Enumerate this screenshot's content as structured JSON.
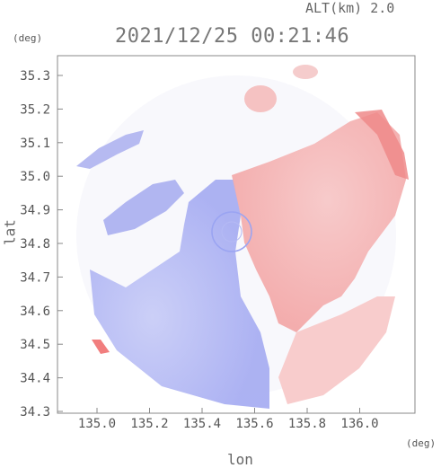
{
  "header": {
    "altitude_label": "ALT(km) 2.0",
    "timestamp": "2021/12/25 00:21:46"
  },
  "axes": {
    "y_unit": "(deg)",
    "x_unit": "(deg)",
    "y_label": "lat",
    "x_label": "lon",
    "y_ticks": [
      "35.3",
      "35.2",
      "35.1",
      "35.0",
      "34.9",
      "34.8",
      "34.7",
      "34.6",
      "34.5",
      "34.4",
      "34.3"
    ],
    "x_ticks": [
      "135.0",
      "135.2",
      "135.4",
      "135.6",
      "135.8",
      "136.0"
    ]
  },
  "colors": {
    "approaching": "#9aa4f2",
    "receding": "#f4a6a6",
    "frame": "#888888"
  }
}
